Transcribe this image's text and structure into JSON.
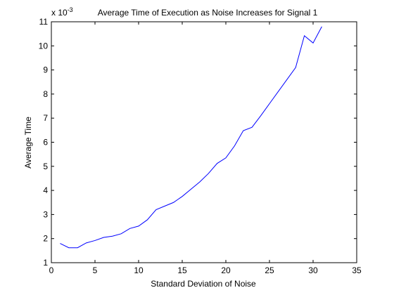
{
  "chart_data": {
    "type": "line",
    "title": "Average Time of Execution as Noise Increases for Signal 1",
    "xlabel": "Standard Deviation of Noise",
    "ylabel": "Average Time",
    "y_exponent_base": "x 10",
    "y_exponent_power": "-3",
    "xlim": [
      0,
      35
    ],
    "ylim": [
      1,
      11
    ],
    "xticks": [
      0,
      5,
      10,
      15,
      20,
      25,
      30,
      35
    ],
    "yticks": [
      1,
      2,
      3,
      4,
      5,
      6,
      7,
      8,
      9,
      10,
      11
    ],
    "grid": false,
    "line_color": "#0000ff",
    "series": [
      {
        "x": [
          1,
          2,
          3,
          4,
          5,
          6,
          7,
          8,
          9,
          10,
          11,
          12,
          13,
          14,
          15,
          16,
          17,
          18,
          19,
          20,
          21,
          22,
          23,
          24,
          25,
          26,
          27,
          28,
          29,
          30,
          31
        ],
        "values": [
          1.8,
          1.62,
          1.62,
          1.82,
          1.92,
          2.05,
          2.1,
          2.2,
          2.42,
          2.52,
          2.78,
          3.2,
          3.35,
          3.5,
          3.75,
          4.05,
          4.35,
          4.7,
          5.12,
          5.35,
          5.85,
          6.48,
          6.62,
          7.1,
          7.6,
          8.1,
          8.6,
          9.1,
          10.42,
          10.12,
          10.8
        ]
      }
    ]
  }
}
